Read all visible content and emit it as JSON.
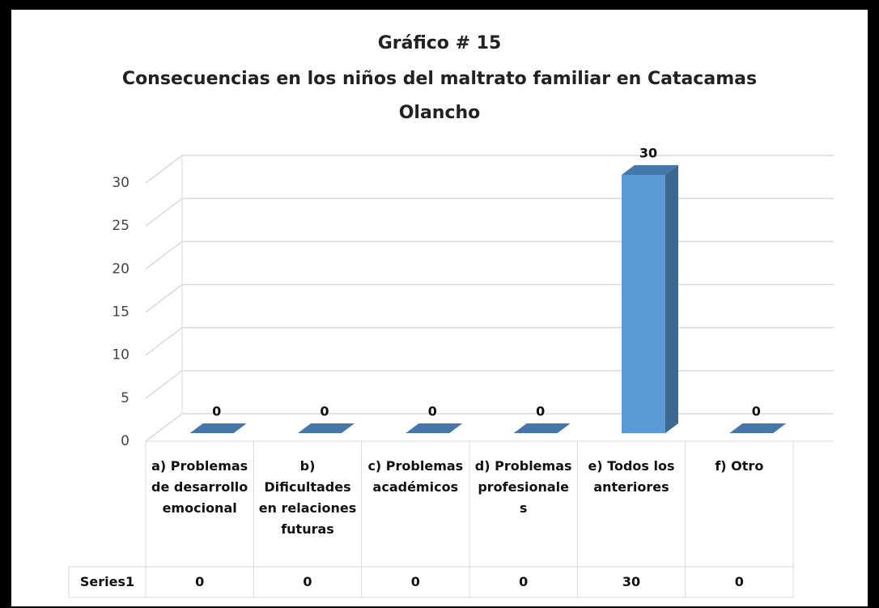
{
  "chart_data": {
    "type": "bar3d",
    "title": [
      "Gráfico # 15",
      "Consecuencias en los niños del maltrato familiar en Catacamas",
      "Olancho"
    ],
    "categories": [
      "a) Problemas de desarrollo emocional",
      "b) Dificultades en relaciones futuras",
      "c) Problemas académicos",
      "d) Problemas profesionales",
      "e) Todos los anteriores",
      "f) Otro"
    ],
    "series": [
      {
        "name": "Series1",
        "color": "#5b9bd5",
        "values": [
          0,
          0,
          0,
          0,
          30,
          0
        ]
      }
    ],
    "ylim": [
      0,
      30
    ],
    "yticks": [
      0,
      5,
      10,
      15,
      20,
      25,
      30
    ],
    "grid": true,
    "data_table": true
  }
}
